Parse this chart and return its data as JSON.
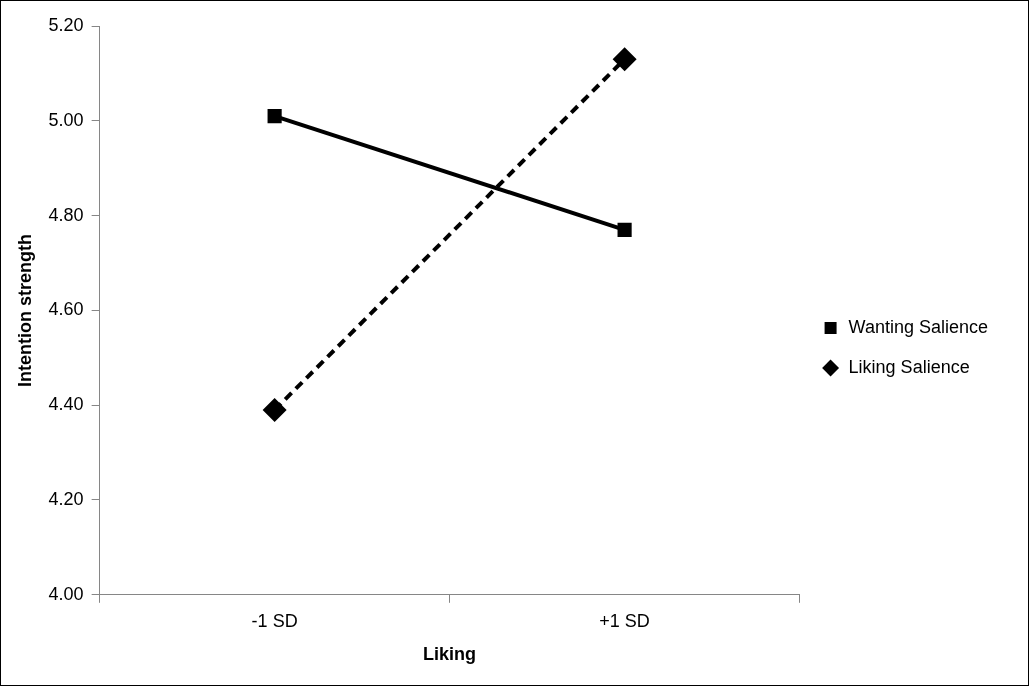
{
  "chart_data": {
    "type": "line",
    "xlabel": "Liking",
    "ylabel": "Intention strength",
    "categories": [
      "-1 SD",
      "+1 SD"
    ],
    "series": [
      {
        "name": "Wanting Salience",
        "color": "#000000",
        "values": [
          5.01,
          4.77
        ],
        "marker": "square",
        "line_style": "solid"
      },
      {
        "name": "Liking Salience",
        "color": "#000000",
        "values": [
          4.39,
          5.13
        ],
        "marker": "diamond",
        "line_style": "dashed"
      }
    ],
    "ylim": [
      4.0,
      5.2
    ],
    "yticks": [
      {
        "value": 4.0,
        "label": "4.00"
      },
      {
        "value": 4.2,
        "label": "4.20"
      },
      {
        "value": 4.4,
        "label": "4.40"
      },
      {
        "value": 4.6,
        "label": "4.60"
      },
      {
        "value": 4.8,
        "label": "4.80"
      },
      {
        "value": 5.0,
        "label": "5.00"
      },
      {
        "value": 5.2,
        "label": "5.20"
      }
    ],
    "grid": false,
    "legend": "right"
  }
}
